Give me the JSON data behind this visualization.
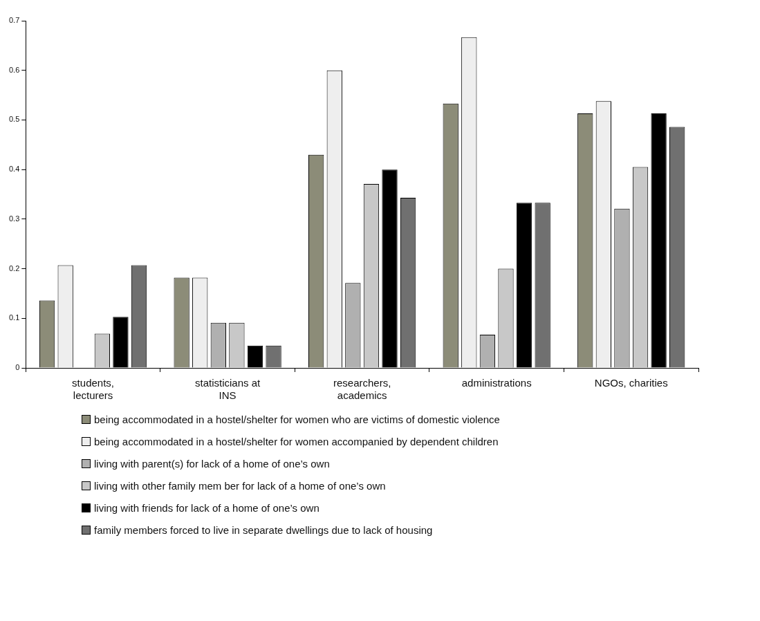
{
  "chart_data": {
    "type": "bar",
    "categories": [
      "students, lecturers",
      "statisticians at INS",
      "researchers, academics",
      "administrations",
      "NGOs, charities"
    ],
    "series": [
      {
        "name": "being accommodated in a hostel/shelter for women who are victims of domestic violence",
        "color": "#8c8c78",
        "values": [
          0.136,
          0.182,
          0.43,
          0.533,
          0.513
        ]
      },
      {
        "name": "being accommodated in a hostel/shelter for women accompanied by dependent children",
        "color": "#eeeeee",
        "values": [
          0.207,
          0.182,
          0.6,
          0.667,
          0.538
        ]
      },
      {
        "name": "living with parent(s) for lack of a home of one’s own",
        "color": "#b0b0b0",
        "values": [
          0,
          0.091,
          0.171,
          0.067,
          0.321
        ]
      },
      {
        "name": "living with other family mem ber for lack of a home of one’s own",
        "color": "#c8c8c8",
        "values": [
          0.069,
          0.091,
          0.371,
          0.2,
          0.405
        ]
      },
      {
        "name": "living with friends for lack of a home of one’s own",
        "color": "#000000",
        "values": [
          0.103,
          0.045,
          0.4,
          0.333,
          0.513
        ]
      },
      {
        "name": "family members forced to live in separate dwellings due to lack of housing",
        "color": "#707070",
        "values": [
          0.207,
          0.045,
          0.343,
          0.333,
          0.486
        ]
      }
    ],
    "ylim": [
      0,
      0.7
    ],
    "yticks": [
      0,
      0.1,
      0.2,
      0.3,
      0.4,
      0.5,
      0.6,
      0.7
    ],
    "grid": false,
    "legend": "bottom"
  }
}
